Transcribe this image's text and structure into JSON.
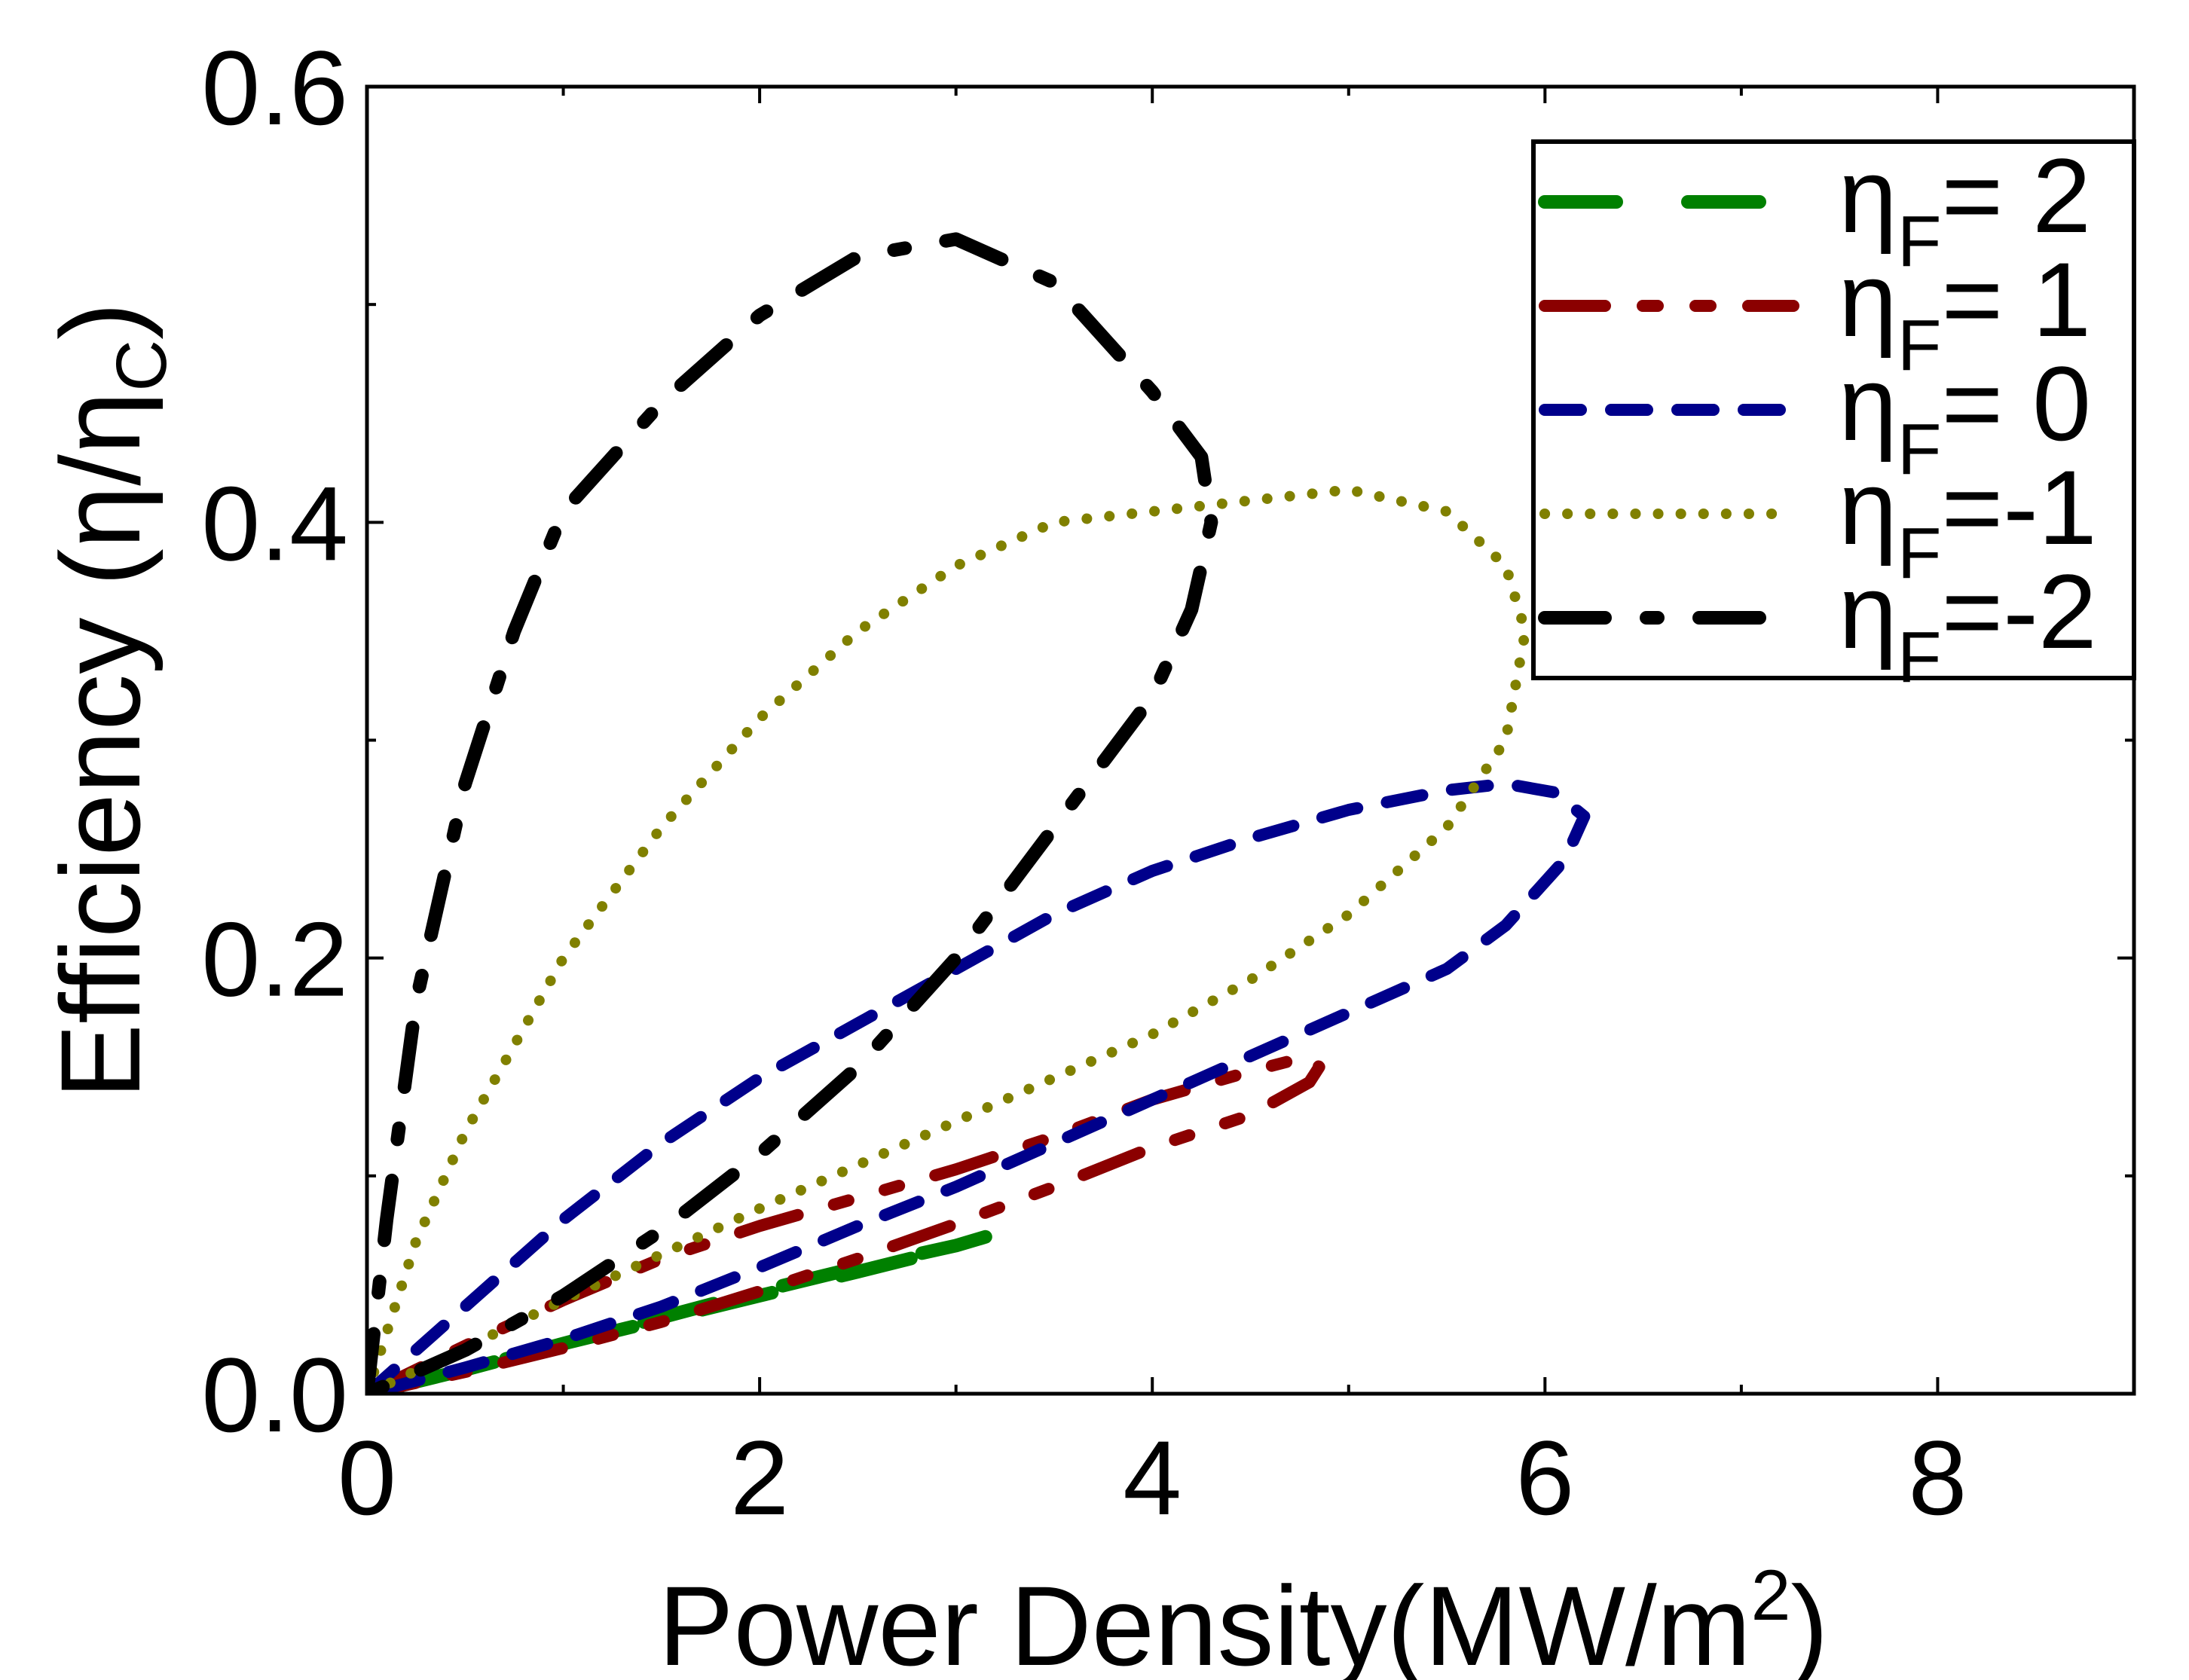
{
  "chart_data": {
    "type": "line",
    "title": "",
    "xlabel": "Power Density(MW/m",
    "xlabel_sup": "2",
    "xlabel_end": ")",
    "ylabel": "Efficiency (η/η",
    "ylabel_sub": "C",
    "ylabel_end": ")",
    "xlim": [
      0,
      9
    ],
    "ylim": [
      0,
      0.6
    ],
    "xticks": [
      0,
      2,
      4,
      6,
      8
    ],
    "xtick_labels": [
      "0",
      "2",
      "4",
      "6",
      "8"
    ],
    "yticks": [
      0,
      0.2,
      0.4,
      0.6
    ],
    "ytick_labels": [
      "0.0",
      "0.2",
      "0.4",
      "0.6"
    ],
    "legend_position": "top-right",
    "series": [
      {
        "name": "ηF= 2",
        "legend_eta": "η",
        "legend_sub": "F",
        "legend_value": "= 2",
        "color": "#008000",
        "style": "long-dash",
        "x": [
          0,
          0.5,
          1.0,
          1.5,
          2.0,
          2.5,
          3.0,
          3.15,
          2.9,
          2.5,
          2.0,
          1.5,
          1.0,
          0.5,
          0
        ],
        "y": [
          0,
          0.011,
          0.023,
          0.035,
          0.047,
          0.058,
          0.068,
          0.072,
          0.065,
          0.056,
          0.045,
          0.034,
          0.023,
          0.011,
          0
        ]
      },
      {
        "name": "ηF= 1",
        "legend_eta": "η",
        "legend_sub": "F",
        "legend_value": "= 1",
        "color": "#8B0000",
        "style": "dash-dot-dot",
        "x": [
          0,
          0.5,
          1.0,
          1.5,
          2.0,
          2.5,
          3.0,
          3.5,
          4.0,
          4.5,
          4.8,
          4.85,
          4.8,
          4.5,
          4.0,
          3.5,
          3.0,
          2.5,
          2.0,
          1.5,
          1.0,
          0.5,
          0
        ],
        "y": [
          0,
          0.022,
          0.043,
          0.062,
          0.077,
          0.09,
          0.103,
          0.118,
          0.135,
          0.148,
          0.155,
          0.15,
          0.143,
          0.128,
          0.113,
          0.095,
          0.078,
          0.062,
          0.047,
          0.033,
          0.021,
          0.01,
          0
        ]
      },
      {
        "name": "ηF= 0",
        "legend_eta": "η",
        "legend_sub": "F",
        "legend_value": "= 0",
        "color": "#00008B",
        "style": "short-dash",
        "x": [
          0,
          0.5,
          1.0,
          1.5,
          2.0,
          2.5,
          3.0,
          3.5,
          4.0,
          4.5,
          5.0,
          5.5,
          5.8,
          6.05,
          6.2,
          6.1,
          5.8,
          5.5,
          5.0,
          4.5,
          4.0,
          3.5,
          3.0,
          2.5,
          2.0,
          1.5,
          1.0,
          0.5,
          0
        ],
        "y": [
          0,
          0.04,
          0.08,
          0.115,
          0.145,
          0.17,
          0.195,
          0.22,
          0.24,
          0.255,
          0.268,
          0.277,
          0.28,
          0.276,
          0.265,
          0.245,
          0.215,
          0.195,
          0.175,
          0.155,
          0.135,
          0.115,
          0.095,
          0.077,
          0.058,
          0.04,
          0.025,
          0.012,
          0
        ]
      },
      {
        "name": "ηF=-1",
        "legend_eta": "η",
        "legend_sub": "F",
        "legend_value": "=-1",
        "color": "#808000",
        "style": "dotted",
        "x": [
          0,
          0.25,
          0.5,
          1.0,
          1.5,
          2.0,
          2.5,
          3.0,
          3.5,
          4.0,
          4.5,
          5.0,
          5.5,
          5.8,
          5.9,
          5.8,
          5.5,
          5.0,
          4.5,
          4.0,
          3.5,
          3.0,
          2.5,
          2.0,
          1.5,
          1.0,
          0.5,
          0
        ],
        "y": [
          0,
          0.07,
          0.12,
          0.2,
          0.26,
          0.31,
          0.35,
          0.38,
          0.4,
          0.405,
          0.41,
          0.415,
          0.405,
          0.38,
          0.35,
          0.3,
          0.26,
          0.22,
          0.19,
          0.165,
          0.145,
          0.125,
          0.105,
          0.085,
          0.064,
          0.043,
          0.021,
          0
        ]
      },
      {
        "name": "ηF=-2",
        "legend_eta": "η",
        "legend_sub": "F",
        "legend_value": "=-2",
        "color": "#000000",
        "style": "dash-dot",
        "x": [
          0,
          0.1,
          0.25,
          0.5,
          0.75,
          1.0,
          1.25,
          1.5,
          2.0,
          2.5,
          3.0,
          3.5,
          4.0,
          4.25,
          4.3,
          4.2,
          4.0,
          3.5,
          3.0,
          2.5,
          2.0,
          1.5,
          1.0,
          0.5,
          0.1,
          0
        ],
        "y": [
          0,
          0.08,
          0.18,
          0.28,
          0.35,
          0.405,
          0.43,
          0.455,
          0.495,
          0.522,
          0.53,
          0.51,
          0.46,
          0.43,
          0.4,
          0.36,
          0.32,
          0.26,
          0.2,
          0.15,
          0.11,
          0.075,
          0.045,
          0.02,
          0.004,
          0
        ]
      }
    ]
  }
}
